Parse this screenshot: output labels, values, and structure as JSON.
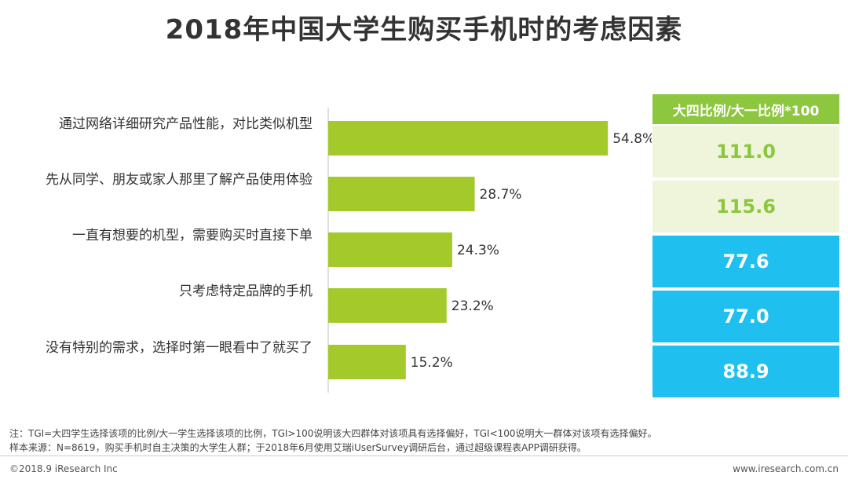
{
  "title": "2018年中国大学生购买手机时的考虑因素",
  "chart_data": {
    "type": "bar",
    "orientation": "horizontal",
    "categories": [
      "通过网络详细研究产品性能，对比类似机型",
      "先从同学、朋友或家人那里了解产品使用体验",
      "一直有想要的机型，需要购买时直接下单",
      "只考虑特定品牌的手机",
      "没有特别的需求，选择时第一眼看中了就买了"
    ],
    "values": [
      54.8,
      28.7,
      24.3,
      23.2,
      15.2
    ],
    "value_labels": [
      "54.8%",
      "28.7%",
      "24.3%",
      "23.2%",
      "15.2%"
    ],
    "unit": "%",
    "bar_color": "#a3c92b",
    "xlim": [
      0,
      60
    ]
  },
  "tgi_table": {
    "header": "大四比例/大一比例*100",
    "header_color": "#8dc63f",
    "rows": [
      {
        "value": "111.0",
        "bg": "#eef5da",
        "color": "#8dc63f"
      },
      {
        "value": "115.6",
        "bg": "#eef5da",
        "color": "#8dc63f"
      },
      {
        "value": "77.6",
        "bg": "#1fc0ef",
        "color": "#ffffff"
      },
      {
        "value": "77.0",
        "bg": "#1fc0ef",
        "color": "#ffffff"
      },
      {
        "value": "88.9",
        "bg": "#1fc0ef",
        "color": "#ffffff"
      }
    ]
  },
  "notes": {
    "line1": "注：TGI=大四学生选择该项的比例/大一学生选择该项的比例，TGI>100说明该大四群体对该项具有选择偏好，TGI<100说明大一群体对该项有选择偏好。",
    "line2": "样本来源：N=8619，购买手机时自主决策的大学生人群；于2018年6月使用艾瑞iUserSurvey调研后台，通过超级课程表APP调研获得。"
  },
  "footer": {
    "left": "©2018.9 iResearch Inc",
    "right": "www.iresearch.com.cn"
  }
}
